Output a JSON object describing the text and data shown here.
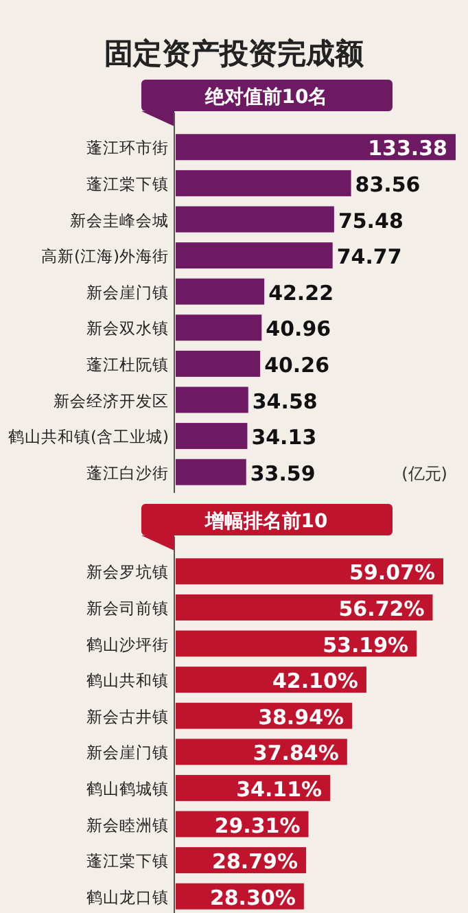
{
  "chart_data": [
    {
      "type": "bar",
      "orientation": "horizontal",
      "title": "固定资产投资完成额",
      "subtitle": "绝对值前10名",
      "categories": [
        "蓬江环市街",
        "蓬江棠下镇",
        "新会圭峰会城",
        "高新(江海)外海街",
        "新会崖门镇",
        "新会双水镇",
        "蓬江杜阮镇",
        "新会经济开发区",
        "鹤山共和镇(含工业城)",
        "蓬江白沙街"
      ],
      "values": [
        133.38,
        83.56,
        75.48,
        74.77,
        42.22,
        40.96,
        40.26,
        34.58,
        34.13,
        33.59
      ],
      "color": "#6e1a63",
      "data_labels": true,
      "annotations": [
        "(亿元)"
      ]
    },
    {
      "type": "bar",
      "orientation": "horizontal",
      "title": "增幅排名前10",
      "categories": [
        "新会罗坑镇",
        "新会司前镇",
        "鹤山沙坪街",
        "鹤山共和镇",
        "新会古井镇",
        "新会崖门镇",
        "鹤山鹤城镇",
        "新会睦洲镇",
        "蓬江棠下镇",
        "鹤山龙口镇"
      ],
      "values": [
        59.07,
        56.72,
        53.19,
        42.1,
        38.94,
        37.84,
        34.11,
        29.31,
        28.79,
        28.3
      ],
      "color": "#c0142e",
      "value_labels": [
        "59.07%",
        "56.72%",
        "53.19%",
        "42.10%",
        "38.94%",
        "37.84%",
        "34.11%",
        "29.31%",
        "28.79%",
        "28.30%"
      ]
    }
  ]
}
